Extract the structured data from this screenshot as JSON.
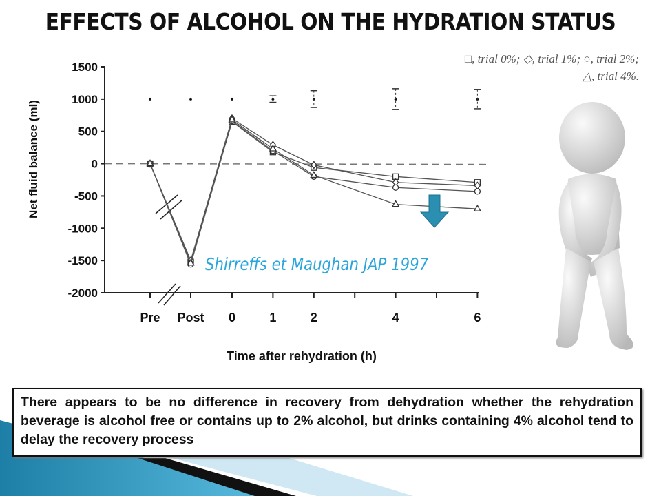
{
  "slide": {
    "title": "EFFECTS OF ALCOHOL ON THE HYDRATION STATUS",
    "citation": "Shirreffs et Maughan JAP 1997",
    "note": "There appears to be no difference in recovery from dehydration whether the rehydration beverage is alcohol free or contains up to 2% alcohol, but drinks containing 4% alcohol tend to delay the recovery process",
    "legend_line1": "□, trial 0%; ◇, trial 1%; ○, trial 2%;",
    "legend_line2": "△, trial 4%.",
    "accent_color": "#2aa6dc",
    "arrow_color": "#2a8fb0"
  },
  "chart_data": {
    "type": "line",
    "title": "",
    "xlabel": "Time after rehydration (h)",
    "ylabel": "Net fluid balance (ml)",
    "ylim": [
      -2000,
      1500
    ],
    "yticks": [
      1500,
      1000,
      500,
      0,
      -500,
      -1000,
      -1500,
      -2000
    ],
    "categories": [
      "Pre",
      "Post",
      "0",
      "1",
      "2",
      "4",
      "6"
    ],
    "hours": [
      null,
      null,
      0,
      1,
      2,
      4,
      6
    ],
    "reference_line": 0,
    "series": [
      {
        "name": "trial 0%",
        "marker": "square",
        "values": [
          0,
          -1520,
          650,
          180,
          -60,
          -200,
          -290
        ]
      },
      {
        "name": "trial 1%",
        "marker": "diamond",
        "values": [
          0,
          -1500,
          700,
          290,
          -20,
          -290,
          -340
        ]
      },
      {
        "name": "trial 2%",
        "marker": "circle",
        "values": [
          0,
          -1560,
          660,
          200,
          -200,
          -370,
          -430
        ]
      },
      {
        "name": "trial 4%",
        "marker": "triangle",
        "values": [
          0,
          -1540,
          680,
          230,
          -180,
          -630,
          -700
        ]
      }
    ],
    "significance_markers": {
      "y": 1000,
      "error": [
        0,
        0,
        0,
        50,
        130,
        160,
        150
      ]
    }
  }
}
